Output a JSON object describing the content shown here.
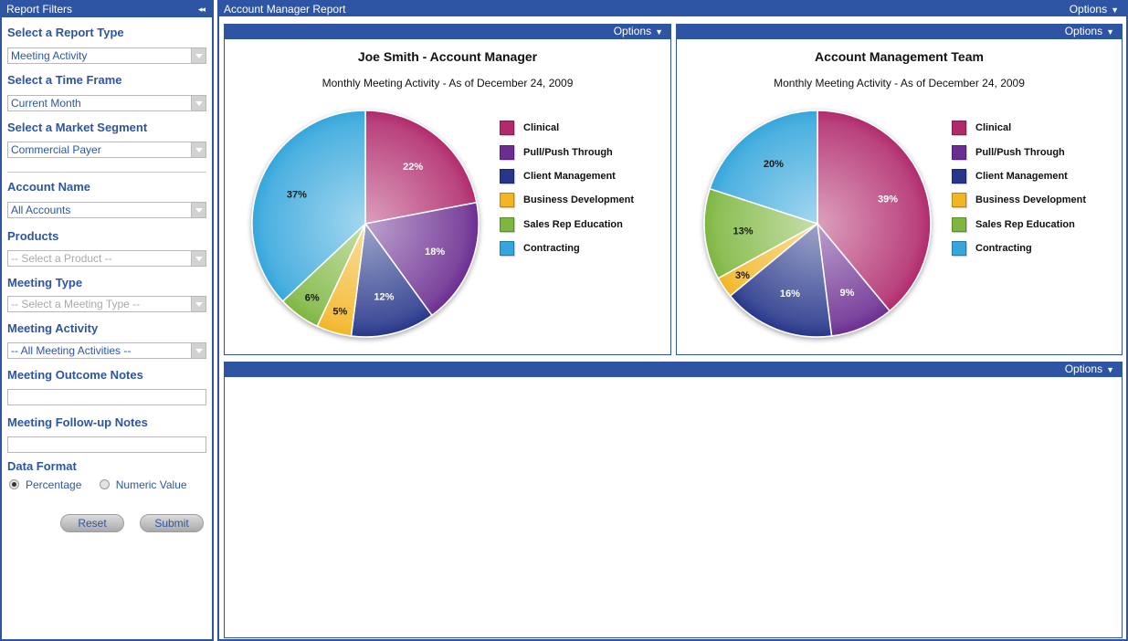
{
  "sidebar": {
    "title": "Report Filters",
    "collapse_icon": "◂◂",
    "report_type": {
      "label": "Select a Report Type",
      "value": "Meeting Activity"
    },
    "time_frame": {
      "label": "Select a Time Frame",
      "value": "Current Month"
    },
    "market_segment": {
      "label": "Select a Market Segment",
      "value": "Commercial Payer"
    },
    "account_name": {
      "label": "Account Name",
      "value": "All Accounts"
    },
    "products": {
      "label": "Products",
      "value": "-- Select a Product --"
    },
    "meeting_type": {
      "label": "Meeting Type",
      "value": "-- Select a Meeting Type --"
    },
    "meeting_activity": {
      "label": "Meeting Activity",
      "value": "-- All Meeting Activities --"
    },
    "outcome_notes": {
      "label": "Meeting Outcome Notes",
      "value": ""
    },
    "followup_notes": {
      "label": "Meeting Follow-up Notes",
      "value": ""
    },
    "data_format": {
      "label": "Data Format",
      "options": [
        "Percentage",
        "Numeric Value"
      ],
      "selected": "Percentage"
    },
    "reset_label": "Reset",
    "submit_label": "Submit"
  },
  "report": {
    "title": "Account Manager Report",
    "options_label": "Options",
    "options_icon": "▼"
  },
  "colors": {
    "brand": "#2d55a3",
    "Clinical": "#b12a6c",
    "Pull/Push Through": "#6b2d91",
    "Client Management": "#26368a",
    "Business Development": "#f2b526",
    "Sales Rep Education": "#7db640",
    "Contracting": "#35a6dc"
  },
  "chart_data": [
    {
      "type": "pie",
      "title": "Joe Smith - Account Manager",
      "subtitle": "Monthly Meeting Activity - As of December 24, 2009",
      "categories": [
        "Clinical",
        "Pull/Push Through",
        "Client Management",
        "Business Development",
        "Sales Rep Education",
        "Contracting"
      ],
      "values": [
        22,
        18,
        12,
        5,
        6,
        37
      ],
      "labels": [
        "22%",
        "18%",
        "12%",
        "5%",
        "6%",
        "37%"
      ],
      "legend": "right"
    },
    {
      "type": "pie",
      "title": "Account Management Team",
      "subtitle": "Monthly Meeting Activity - As of December 24, 2009",
      "categories": [
        "Clinical",
        "Pull/Push Through",
        "Client Management",
        "Business Development",
        "Sales Rep Education",
        "Contracting"
      ],
      "values": [
        39,
        9,
        16,
        3,
        13,
        20
      ],
      "labels": [
        "39%",
        "9%",
        "16%",
        "3%",
        "13%",
        "20%"
      ],
      "legend": "right"
    }
  ]
}
